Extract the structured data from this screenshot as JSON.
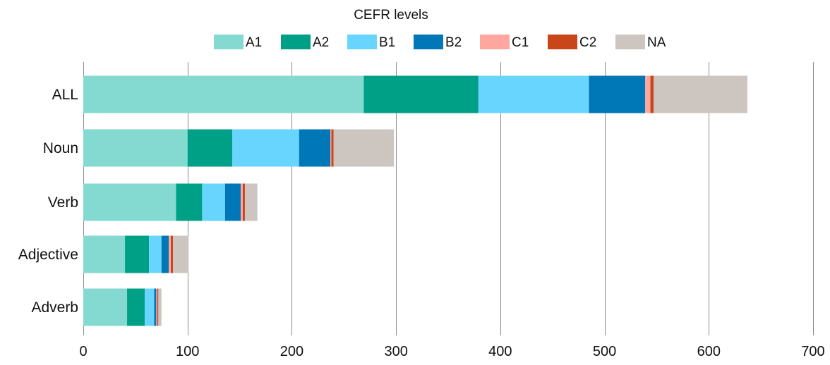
{
  "chart_data": {
    "type": "bar",
    "orientation": "horizontal",
    "stacked": true,
    "title": "",
    "xlabel": "",
    "ylabel": "",
    "legend_title": "CEFR levels",
    "legend_position": "top",
    "grid": true,
    "xlim": [
      0,
      700
    ],
    "x_ticks": [
      0,
      100,
      200,
      300,
      400,
      500,
      600,
      700
    ],
    "categories": [
      "ALL",
      "Noun",
      "Verb",
      "Adjective",
      "Adverb"
    ],
    "series": [
      {
        "name": "A1",
        "color": "#84dad1",
        "values": [
          269,
          100,
          89,
          40,
          42
        ]
      },
      {
        "name": "A2",
        "color": "#00a087",
        "values": [
          110,
          43,
          25,
          23,
          17
        ]
      },
      {
        "name": "B1",
        "color": "#68d5ff",
        "values": [
          106,
          64,
          22,
          12,
          9
        ]
      },
      {
        "name": "B2",
        "color": "#0077b6",
        "values": [
          54,
          30,
          15,
          7,
          2
        ]
      },
      {
        "name": "C1",
        "color": "#ffa69e",
        "values": [
          5,
          1,
          2,
          2,
          1
        ]
      },
      {
        "name": "C2",
        "color": "#c8461a",
        "values": [
          3,
          2,
          2,
          2,
          1
        ]
      },
      {
        "name": "NA",
        "color": "#cdc5bf",
        "values": [
          90,
          58,
          12,
          15,
          3
        ]
      }
    ]
  }
}
